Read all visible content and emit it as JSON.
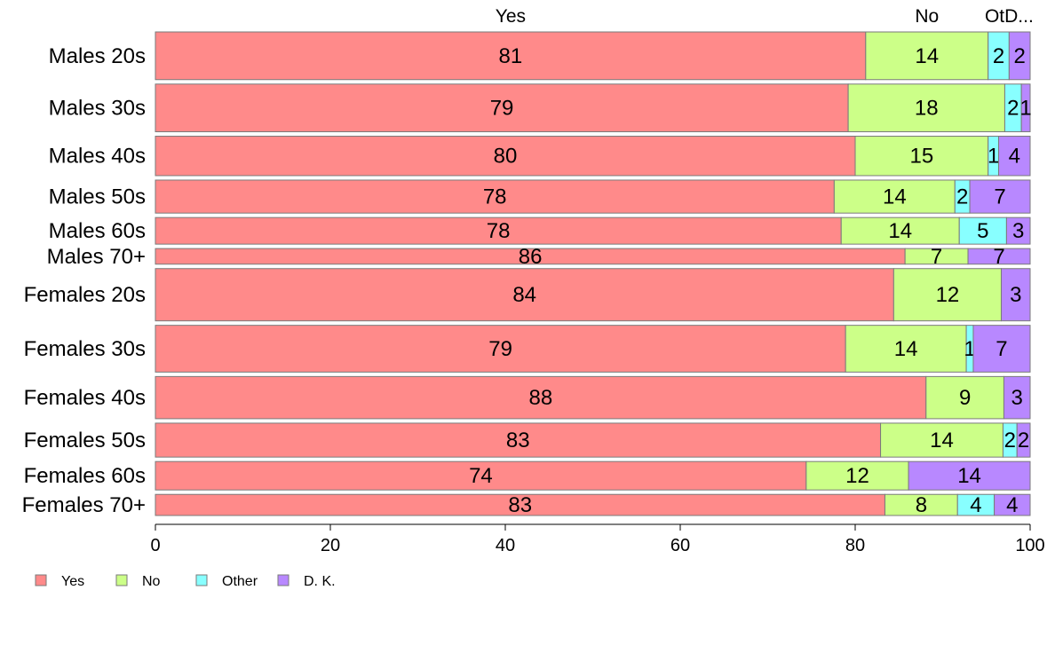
{
  "chart_data": {
    "type": "bar",
    "orientation": "horizontal",
    "stacked": true,
    "variable_width": true,
    "xlim": [
      0,
      100
    ],
    "x_ticks": [
      "0",
      "20",
      "40",
      "60",
      "80",
      "100"
    ],
    "column_labels": [
      "Yes",
      "No",
      "OtD..."
    ],
    "grid": false,
    "legend_position": "bottom-left",
    "series": [
      {
        "name": "Yes",
        "color": "#FF8A8A"
      },
      {
        "name": "No",
        "color": "#CCFF88"
      },
      {
        "name": "Other",
        "color": "#88FFFF"
      },
      {
        "name": "D. K.",
        "color": "#B888FF"
      }
    ],
    "categories": [
      {
        "label": "Males 20s",
        "values": [
          81.2,
          14.0,
          2.4,
          2.4
        ],
        "labels": [
          "81",
          "14",
          "2",
          "2"
        ]
      },
      {
        "label": "Males 30s",
        "values": [
          79.2,
          17.9,
          1.9,
          1.0
        ],
        "labels": [
          "79",
          "18",
          "2",
          "1"
        ]
      },
      {
        "label": "Males 40s",
        "values": [
          80.0,
          15.2,
          1.2,
          3.6
        ],
        "labels": [
          "80",
          "15",
          "1",
          "4"
        ]
      },
      {
        "label": "Males 50s",
        "values": [
          77.6,
          13.8,
          1.7,
          6.9
        ],
        "labels": [
          "78",
          "14",
          "2",
          "7"
        ]
      },
      {
        "label": "Males 60s",
        "values": [
          78.4,
          13.5,
          5.4,
          2.7
        ],
        "labels": [
          "78",
          "14",
          "5",
          "3"
        ]
      },
      {
        "label": "Males 70+",
        "values": [
          85.7,
          7.2,
          0,
          7.1
        ],
        "labels": [
          "86",
          "7",
          "",
          "7"
        ]
      },
      {
        "label": "Females 20s",
        "values": [
          84.4,
          12.3,
          0,
          3.3
        ],
        "labels": [
          "84",
          "12",
          "",
          "3"
        ]
      },
      {
        "label": "Females 30s",
        "values": [
          78.9,
          13.8,
          0.8,
          6.5
        ],
        "labels": [
          "79",
          "14",
          "1",
          "7"
        ]
      },
      {
        "label": "Females 40s",
        "values": [
          88.1,
          8.9,
          0,
          3.0
        ],
        "labels": [
          "88",
          "9",
          "",
          "3"
        ]
      },
      {
        "label": "Females 50s",
        "values": [
          82.9,
          14.0,
          1.6,
          1.5
        ],
        "labels": [
          "83",
          "14",
          "2",
          "2"
        ]
      },
      {
        "label": "Females 60s",
        "values": [
          74.4,
          11.7,
          0,
          13.9
        ],
        "labels": [
          "74",
          "12",
          "",
          "14"
        ]
      },
      {
        "label": "Females 70+",
        "values": [
          83.4,
          8.3,
          4.2,
          4.1
        ],
        "labels": [
          "83",
          "8",
          "4",
          "4"
        ]
      }
    ],
    "row_weights": [
      52,
      52,
      43,
      36,
      29,
      17,
      57,
      51,
      46,
      37,
      31,
      23
    ]
  }
}
